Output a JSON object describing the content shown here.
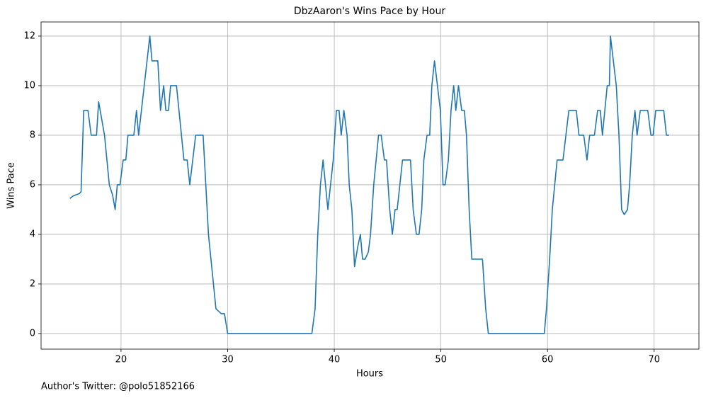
{
  "chart_data": {
    "type": "line",
    "title": "DbzAaron's Wins Pace by Hour",
    "xlabel": "Hours",
    "ylabel": "Wins Pace",
    "annotation": "Author's Twitter: @polo51852166",
    "x": [
      15.2,
      15.5,
      16.1,
      16.25,
      16.5,
      16.9,
      17.2,
      17.7,
      17.9,
      18.45,
      18.9,
      19.2,
      19.45,
      19.65,
      19.9,
      20.2,
      20.45,
      20.65,
      21.2,
      21.45,
      21.65,
      22.7,
      22.9,
      23.45,
      23.7,
      24.0,
      24.2,
      24.45,
      24.65,
      25.2,
      25.9,
      26.2,
      26.45,
      27.0,
      27.7,
      28.2,
      28.9,
      29.4,
      29.7,
      30.0,
      37.9,
      38.2,
      38.45,
      38.7,
      38.95,
      39.4,
      39.9,
      40.2,
      40.45,
      40.65,
      40.9,
      41.2,
      41.4,
      41.65,
      41.9,
      42.2,
      42.45,
      42.65,
      42.9,
      43.2,
      43.4,
      43.7,
      44.15,
      44.4,
      44.7,
      44.9,
      45.2,
      45.45,
      45.7,
      45.9,
      46.4,
      47.15,
      47.4,
      47.7,
      47.95,
      48.2,
      48.4,
      48.7,
      48.95,
      49.15,
      49.4,
      49.95,
      50.2,
      50.4,
      50.7,
      50.95,
      51.2,
      51.4,
      51.65,
      51.95,
      52.2,
      52.4,
      52.65,
      52.9,
      53.9,
      54.2,
      54.45,
      59.7,
      59.9,
      60.2,
      60.45,
      60.9,
      61.45,
      62.0,
      62.7,
      62.95,
      63.4,
      63.7,
      63.95,
      64.4,
      64.7,
      64.95,
      65.15,
      65.6,
      65.8,
      65.9,
      66.45,
      66.7,
      66.95,
      67.2,
      67.5,
      67.7,
      67.95,
      68.2,
      68.4,
      68.7,
      69.4,
      69.7,
      69.9,
      70.15,
      70.9,
      71.15,
      71.4
    ],
    "series": [
      {
        "name": "Wins Pace",
        "color": "#1f77b4",
        "values": [
          5.45,
          5.55,
          5.65,
          5.72,
          9,
          9,
          8,
          8,
          9.35,
          8,
          6,
          5.6,
          5,
          6,
          6,
          7,
          7,
          8,
          8,
          9,
          8,
          12,
          11,
          11,
          9,
          10,
          9,
          9,
          10,
          10,
          7,
          7,
          6,
          8,
          8,
          4,
          1,
          0.8,
          0.8,
          0,
          0,
          1,
          4,
          6,
          7,
          5,
          7,
          9,
          9,
          8,
          9,
          8,
          6,
          5,
          2.7,
          3.5,
          4,
          3,
          3,
          3.3,
          4,
          6,
          8,
          8,
          7,
          7,
          5,
          4,
          5,
          5,
          7,
          7,
          5,
          4,
          4,
          5,
          7,
          8,
          8,
          10,
          11,
          9,
          6,
          6,
          7,
          9,
          10,
          9,
          10,
          9,
          9,
          8,
          5,
          3,
          3,
          1,
          0,
          0,
          1,
          3,
          5,
          7,
          7,
          9,
          9,
          8,
          8,
          7,
          8,
          8,
          9,
          9,
          8,
          10,
          10,
          12,
          10,
          8,
          5,
          4.8,
          5,
          6,
          8,
          9,
          8,
          9,
          9,
          8,
          8,
          9,
          9,
          8,
          8
        ]
      }
    ],
    "xlim": [
      12.5,
      74.2
    ],
    "ylim": [
      -0.63,
      12.57
    ],
    "xticks": [
      20,
      30,
      40,
      50,
      60,
      70
    ],
    "yticks": [
      0,
      2,
      4,
      6,
      8,
      10,
      12
    ],
    "grid": true
  }
}
